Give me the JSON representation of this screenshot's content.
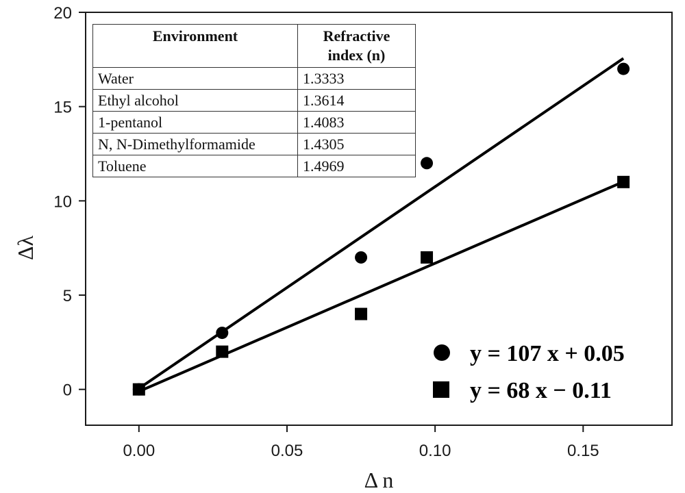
{
  "chart_data": {
    "type": "scatter",
    "title": "",
    "xlabel": "Δ n",
    "ylabel": "Δλ",
    "xlim": [
      -0.018,
      0.18
    ],
    "ylim": [
      -1.9,
      20
    ],
    "xticks": [
      0.0,
      0.05,
      0.1,
      0.15
    ],
    "xtick_labels": [
      "0.00",
      "0.05",
      "0.10",
      "0.15"
    ],
    "yticks": [
      0,
      5,
      10,
      15,
      20
    ],
    "ytick_labels": [
      "0",
      "5",
      "10",
      "15",
      "20"
    ],
    "grid": false,
    "legend_position": "bottom-right",
    "series": [
      {
        "name": "y = 107 x + 0.05",
        "marker": "circle",
        "x": [
          0.0,
          0.0281,
          0.075,
          0.0972,
          0.1636
        ],
        "y": [
          0,
          3,
          7,
          12,
          17
        ],
        "fit": {
          "slope": 107,
          "intercept": 0.05,
          "x_range": [
            0.0,
            0.1636
          ]
        }
      },
      {
        "name": "y = 68 x − 0.11",
        "marker": "square",
        "x": [
          0.0,
          0.0281,
          0.075,
          0.0972,
          0.1636
        ],
        "y": [
          0,
          2,
          4,
          7,
          11
        ],
        "fit": {
          "slope": 68,
          "intercept": -0.11,
          "x_range": [
            0.0,
            0.1636
          ]
        }
      }
    ],
    "inset_table": {
      "headers": [
        "Environment",
        "Refractive index (n)"
      ],
      "header_lines": [
        [
          "Environment"
        ],
        [
          "Refractive",
          "index (n)"
        ]
      ],
      "rows": [
        [
          "Water",
          "1.3333"
        ],
        [
          "Ethyl alcohol",
          "1.3614"
        ],
        [
          "1-pentanol",
          "1.4083"
        ],
        [
          "N, N-Dimethylformamide",
          "1.4305"
        ],
        [
          "Toluene",
          "1.4969"
        ]
      ]
    },
    "colors": {
      "axis": "#1a1a1a",
      "marker": "#000000",
      "fit_line": "#000000"
    }
  }
}
